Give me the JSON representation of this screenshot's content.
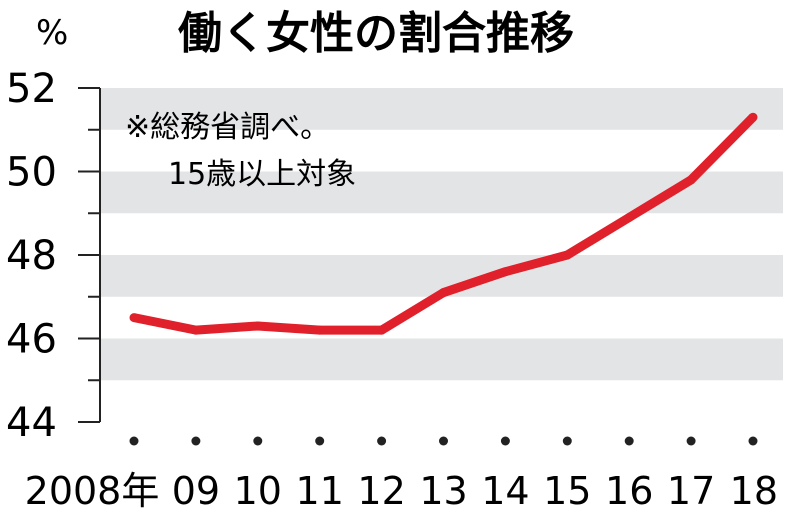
{
  "chart_data": {
    "type": "line",
    "title": "働く女性の割合推移",
    "unit": "%",
    "annotation": [
      "※総務省調べ。",
      "15歳以上対象"
    ],
    "x": [
      "2008年",
      "09",
      "10",
      "11",
      "12",
      "13",
      "14",
      "15",
      "16",
      "17",
      "18"
    ],
    "series": [
      {
        "values": [
          46.5,
          46.2,
          46.3,
          46.2,
          46.2,
          47.1,
          47.6,
          48.0,
          48.9,
          49.8,
          51.3
        ]
      }
    ],
    "yticks": [
      "52",
      "50",
      "48",
      "46",
      "44"
    ],
    "ylim": [
      44,
      52
    ],
    "grid": true,
    "colors": {
      "line": "#e0202a",
      "band": "#e3e4e6",
      "axis": "#222222"
    }
  }
}
